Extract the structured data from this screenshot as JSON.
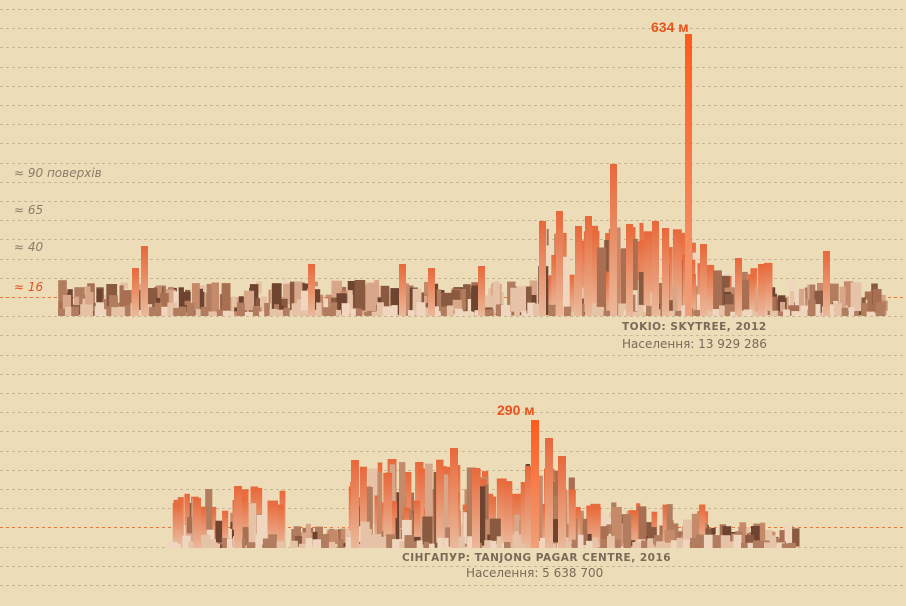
{
  "chart_data": [
    {
      "type": "bar",
      "city_label": "TOKIO: SKYTREE, 2012",
      "population": "Населення: 13 929 286",
      "peak_label": "634 м",
      "levels": [
        "≈ 90 поверхів",
        "≈ 65",
        "≈ 40",
        "≈ 16"
      ],
      "highlight_level": "≈ 16",
      "peak_value": 634,
      "landmark_values": [
        634,
        360,
        300
      ],
      "unit": "м"
    },
    {
      "type": "bar",
      "city_label": "СІНГАПУР: TANJONG PAGAR CENTRE, 2016",
      "population": "Населення: 5 638 700",
      "peak_label": "290 м",
      "peak_value": 290,
      "landmark_values": [
        290,
        235,
        215
      ],
      "unit": "м"
    }
  ],
  "colors": {
    "background": "#ecdcb8",
    "grid": "#c8b594",
    "highlight": "#e8531d",
    "building_dark": "#7a4a32",
    "building_mid": "#c98a68",
    "building_light": "#e3bfa3"
  }
}
